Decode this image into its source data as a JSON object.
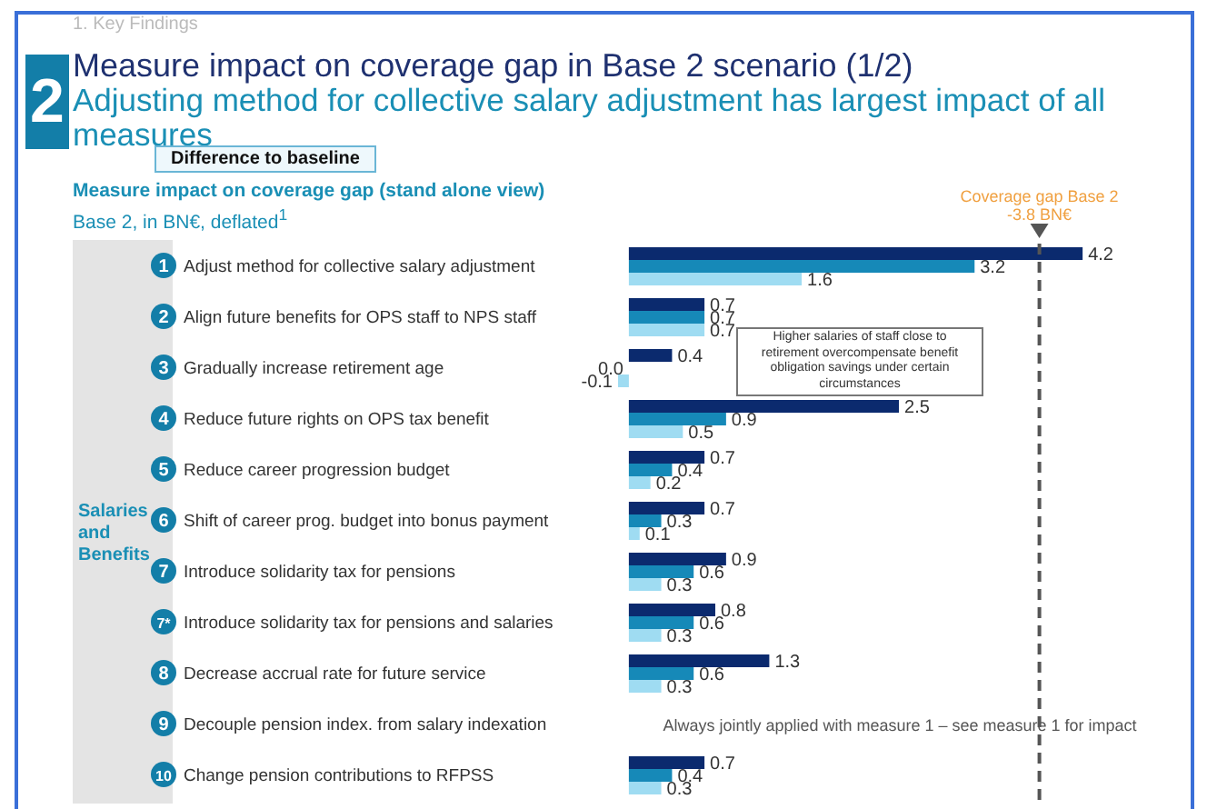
{
  "chart_data": {
    "type": "bar",
    "orientation": "horizontal",
    "title": "Measure impact on coverage gap in Base 2 scenario (1/2)",
    "subtitle": "Adjusting method for collective salary adjustment has largest impact of all measures",
    "categories": [
      "1 Adjust method for collective salary adjustment",
      "2 Align future benefits for OPS staff to NPS staff",
      "3 Gradually increase retirement age",
      "4 Reduce future rights on OPS tax benefit",
      "5 Reduce career progression budget",
      "6 Shift of career prog. budget into bonus payment",
      "7 Introduce solidarity tax for pensions",
      "7* Introduce solidarity tax for pensions and salaries",
      "8 Decrease accrual rate for future service",
      "9 Decouple pension index. from salary indexation",
      "10 Change pension contributions to RFPSS"
    ],
    "series": [
      {
        "color": "#0b2a6e",
        "values": [
          4.2,
          0.7,
          0.4,
          2.5,
          0.7,
          0.7,
          0.9,
          0.8,
          1.3,
          null,
          0.7
        ],
        "value_labels": [
          "4.2",
          "0.7",
          "0.4",
          "2.5",
          "0.7",
          "0.7",
          "0.9",
          "0.8",
          "1.3",
          null,
          "0.7"
        ]
      },
      {
        "color": "#1689b8",
        "values": [
          3.2,
          0.7,
          0.0,
          0.9,
          0.4,
          0.3,
          0.6,
          0.6,
          0.6,
          null,
          0.4
        ],
        "value_labels": [
          "3.2",
          "0.7",
          "0.0",
          "0.9",
          "0.4",
          "0.3",
          "0.6",
          "0.6",
          "0.6",
          null,
          "0.4"
        ]
      },
      {
        "color": "#9fdcf2",
        "values": [
          1.6,
          0.7,
          -0.1,
          0.5,
          0.2,
          0.1,
          0.3,
          0.3,
          0.3,
          null,
          0.3
        ],
        "value_labels": [
          "1.6",
          "0.7",
          "-0.1",
          "0.5",
          "0.2",
          "0.1",
          "0.3",
          "0.3",
          "0.3",
          null,
          "0.3"
        ]
      }
    ],
    "data_labels": true,
    "ref_lines": [
      {
        "axis": "x",
        "value": 3.8,
        "label": "Coverage gap Base 2 -3.8 BN€",
        "color": "#555555",
        "line_style": "dashed"
      }
    ],
    "annotations": [
      "1. Key Findings",
      "2",
      "Difference to baseline",
      "Measure impact on coverage gap (stand alone view)",
      "Base 2, in BN€, deflated$^{1}$",
      "Salaries and Benefits",
      "Higher salaries of staff close to retirement overcompensate benefit obligation savings under certain circumstances",
      "Always jointly applied with measure 1 – see measure 1 for impact"
    ]
  }
}
